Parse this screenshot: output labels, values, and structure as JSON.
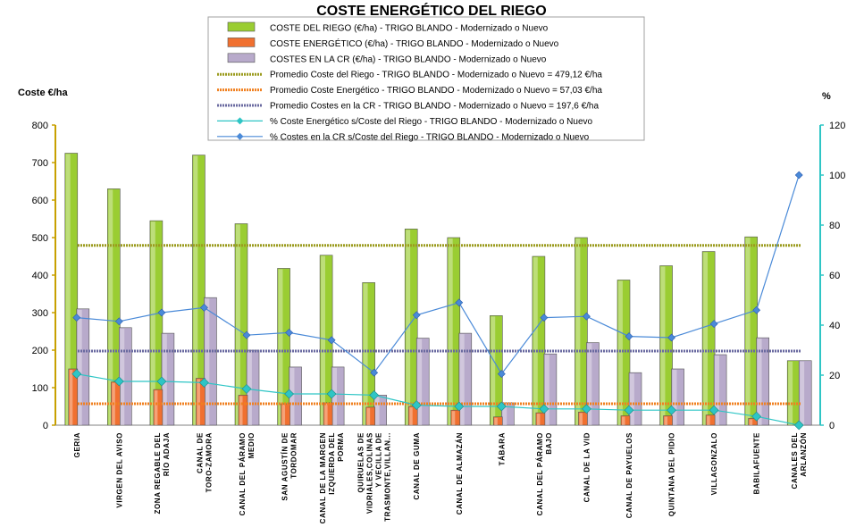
{
  "chart_data": {
    "type": "bar",
    "title": "COSTE ENERGÉTICO DEL RIEGO",
    "ylabel_left": "Coste €/ha",
    "ylabel_right": "%",
    "ylim_left": [
      0,
      800
    ],
    "ylim_right": [
      0,
      120
    ],
    "yticks_left": [
      "0",
      "100",
      "200",
      "300",
      "400",
      "500",
      "600",
      "700",
      "800"
    ],
    "yticks_right": [
      "0",
      "20",
      "40",
      "60",
      "80",
      "100",
      "120"
    ],
    "categories": [
      "GERIA",
      "VIRGEN DEL AVISO",
      "ZONA REGABLE DEL RÍO ADAJA",
      "CANAL DE TORO-ZAMORA",
      "CANAL DEL PÁRAMO MEDIO",
      "SAN AGUSTÍN DE TORDOMAR",
      "CANAL DE LA MARGEN IZQUIERDA DEL PORMA",
      "QUIRUELAS DE VIDRIALES,COLINAS Y VECILLA DE TRASMONTE,VILLAN...",
      "CANAL DE GUMA",
      "CANAL DE ALMAZÁN",
      "TÁBARA",
      "CANAL DEL PÁRAMO BAJO",
      "CANAL DE LA VID",
      "CANAL DE PAYUELOS",
      "QUINTANA DEL PIDIO",
      "VILLAGONZALO",
      "BABILAFUENTE",
      "CANALES DEL ARLANZÓN"
    ],
    "series": [
      {
        "name": "COSTE DEL RIEGO (€/ha) - TRIGO BLANDO - Modernizado o Nuevo",
        "type": "bar",
        "axis": "left",
        "values": [
          725,
          630,
          545,
          720,
          537,
          418,
          453,
          380,
          523,
          500,
          292,
          450,
          500,
          387,
          425,
          463,
          502,
          172
        ]
      },
      {
        "name": "COSTE ENERGÉTICO (€/ha) - TRIGO BLANDO - Modernizado o Nuevo",
        "type": "bar",
        "axis": "left",
        "values": [
          150,
          115,
          95,
          125,
          80,
          57,
          60,
          48,
          50,
          40,
          22,
          33,
          35,
          25,
          25,
          27,
          18,
          0
        ]
      },
      {
        "name": "COSTES EN LA CR (€/ha) - TRIGO BLANDO - Modernizado o Nuevo",
        "type": "bar",
        "axis": "left",
        "values": [
          310,
          260,
          245,
          340,
          200,
          155,
          155,
          80,
          232,
          245,
          60,
          190,
          220,
          140,
          150,
          188,
          233,
          172
        ]
      },
      {
        "name": "Promedio Coste del Riego - TRIGO BLANDO - Modernizado o Nuevo = 479,12 €/ha",
        "type": "avg",
        "axis": "left",
        "value": 479.12
      },
      {
        "name": "Promedio Coste Energético - TRIGO BLANDO - Modernizado o Nuevo = 57,03 €/ha",
        "type": "avg",
        "axis": "left",
        "value": 57.03
      },
      {
        "name": "Promedio Costes en la CR - TRIGO BLANDO - Modernizado o Nuevo = 197,6 €/ha",
        "type": "avg",
        "axis": "left",
        "value": 197.6
      },
      {
        "name": "% Coste Energético s/Coste del Riego - TRIGO BLANDO - Modernizado o Nuevo",
        "type": "line",
        "axis": "right",
        "values": [
          20.5,
          17.5,
          17.5,
          17,
          14.5,
          12.5,
          12.5,
          12,
          8,
          7.5,
          7.5,
          6.5,
          6.5,
          6,
          6,
          6,
          3.5,
          0
        ]
      },
      {
        "name": "% Costes en la CR s/Coste del Riego - TRIGO BLANDO - Modernizado o Nuevo",
        "type": "line",
        "axis": "right",
        "values": [
          43,
          41.5,
          45,
          47,
          36,
          37,
          34,
          21,
          44,
          49,
          20.5,
          43,
          43.5,
          35.5,
          35,
          40.5,
          46,
          100
        ]
      }
    ],
    "colors": {
      "bar1": "#9acd32",
      "bar2": "#f07030",
      "bar3": "#b8aacb",
      "avg1": "#9b9b1e",
      "avg2": "#f08020",
      "avg3": "#6a6aa0",
      "line1": "#2ec5c5",
      "line2": "#4a8ad8",
      "left_axis": "#c8a000",
      "right_axis": "#2ec5c5",
      "left_label": "#b5541a",
      "right_label": "#3a6fd8"
    },
    "legend_position": "top-center",
    "grid": false
  }
}
